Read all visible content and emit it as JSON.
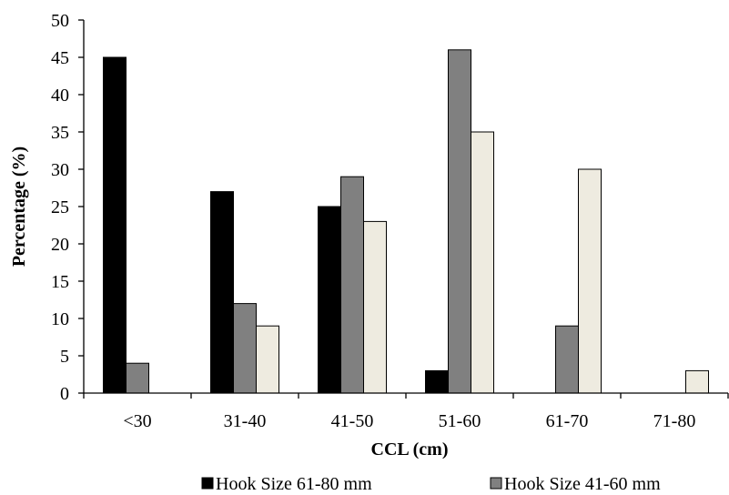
{
  "chart_data": {
    "type": "bar",
    "xlabel": "CCL (cm)",
    "ylabel": "Percentage (%)",
    "ylim": [
      0,
      50
    ],
    "yticks": [
      0,
      5,
      10,
      15,
      20,
      25,
      30,
      35,
      40,
      45,
      50
    ],
    "categories": [
      "<30",
      "31-40",
      "41-50",
      "51-60",
      "61-70",
      "71-80"
    ],
    "grid": false,
    "legend_position": "bottom",
    "series": [
      {
        "name": "Hook Size 61-80 mm",
        "color": "#000000",
        "values": [
          45,
          27,
          25,
          3,
          0,
          0
        ]
      },
      {
        "name": "Hook Size 41-60 mm",
        "color": "#808080",
        "values": [
          4,
          12,
          29,
          46,
          9,
          0
        ]
      },
      {
        "name": "",
        "color": "#eeebe0",
        "values": [
          0,
          9,
          23,
          35,
          30,
          3
        ]
      }
    ]
  }
}
